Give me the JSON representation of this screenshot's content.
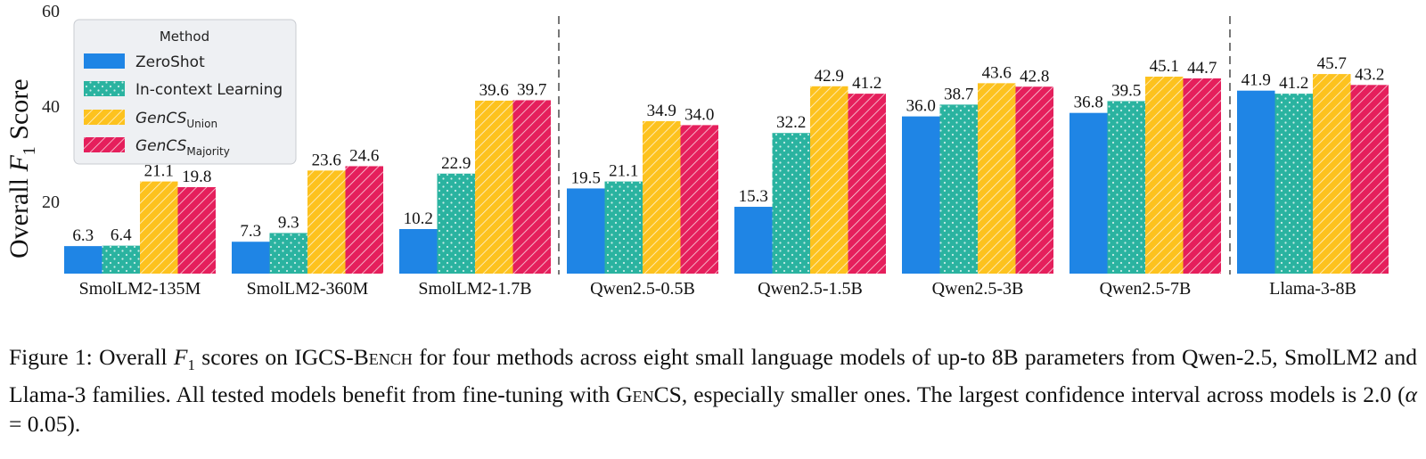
{
  "chart_data": {
    "type": "bar",
    "ylabel_prefix": "Overall ",
    "ylabel_var": "F",
    "ylabel_sub": "1",
    "ylabel_suffix": " Score",
    "ylim": [
      0,
      60
    ],
    "yticks": [
      "20",
      "40",
      "60"
    ],
    "grid": false,
    "legend_placement": "top-left",
    "legend_title": "Method",
    "categories": [
      "SmolLM2-135M",
      "SmolLM2-360M",
      "SmolLM2-1.7B",
      "Qwen2.5-0.5B",
      "Qwen2.5-1.5B",
      "Qwen2.5-3B",
      "Qwen2.5-7B",
      "Llama-3-8B"
    ],
    "separators_after_index": [
      2,
      6
    ],
    "series": [
      {
        "name": "ZeroShot",
        "color": "#1f85e5",
        "pattern": "none",
        "values": [
          6.3,
          7.3,
          10.2,
          19.5,
          15.3,
          36.0,
          36.8,
          41.9
        ]
      },
      {
        "name": "In-context Learning",
        "color": "#2ab3a0",
        "pattern": "dots",
        "values": [
          6.4,
          9.3,
          22.9,
          21.1,
          32.2,
          38.7,
          39.5,
          41.2
        ]
      },
      {
        "name": "GenCS",
        "name_sub": "Union",
        "color": "#fdc21e",
        "pattern": "diag",
        "values": [
          21.1,
          23.6,
          39.6,
          34.9,
          42.9,
          43.6,
          45.1,
          45.7
        ]
      },
      {
        "name": "GenCS",
        "name_sub": "Majority",
        "color": "#e51f5c",
        "pattern": "diag",
        "values": [
          19.8,
          24.6,
          39.7,
          34.0,
          41.2,
          42.8,
          44.7,
          43.2
        ]
      }
    ],
    "value_labels": [
      [
        "6.3",
        "6.4",
        "21.1",
        "19.8"
      ],
      [
        "7.3",
        "9.3",
        "23.6",
        "24.6"
      ],
      [
        "10.2",
        "22.9",
        "39.6",
        "39.7"
      ],
      [
        "19.5",
        "21.1",
        "34.9",
        "34.0"
      ],
      [
        "15.3",
        "32.2",
        "42.9",
        "41.2"
      ],
      [
        "36.0",
        "38.7",
        "43.6",
        "42.8"
      ],
      [
        "36.8",
        "39.5",
        "45.1",
        "44.7"
      ],
      [
        "41.9",
        "41.2",
        "45.7",
        "43.2"
      ]
    ]
  },
  "caption": {
    "prefix": "Figure 1: Overall ",
    "f_var": "F",
    "f_sub": "1",
    "text1": " scores on IGCS-B",
    "text1_sc": "ench",
    "text2": " for four methods across eight small language models of up-to 8B parameters from Qwen-2.5, SmolLM2 and Llama-3 families.  All tested models benefit from fine-tuning with G",
    "text2_sc": "en",
    "text3": "CS, especially smaller ones. The largest confidence interval across models is 2.0 (",
    "alpha": "α",
    "alpha_eq": " = 0.05",
    "end": ")."
  }
}
